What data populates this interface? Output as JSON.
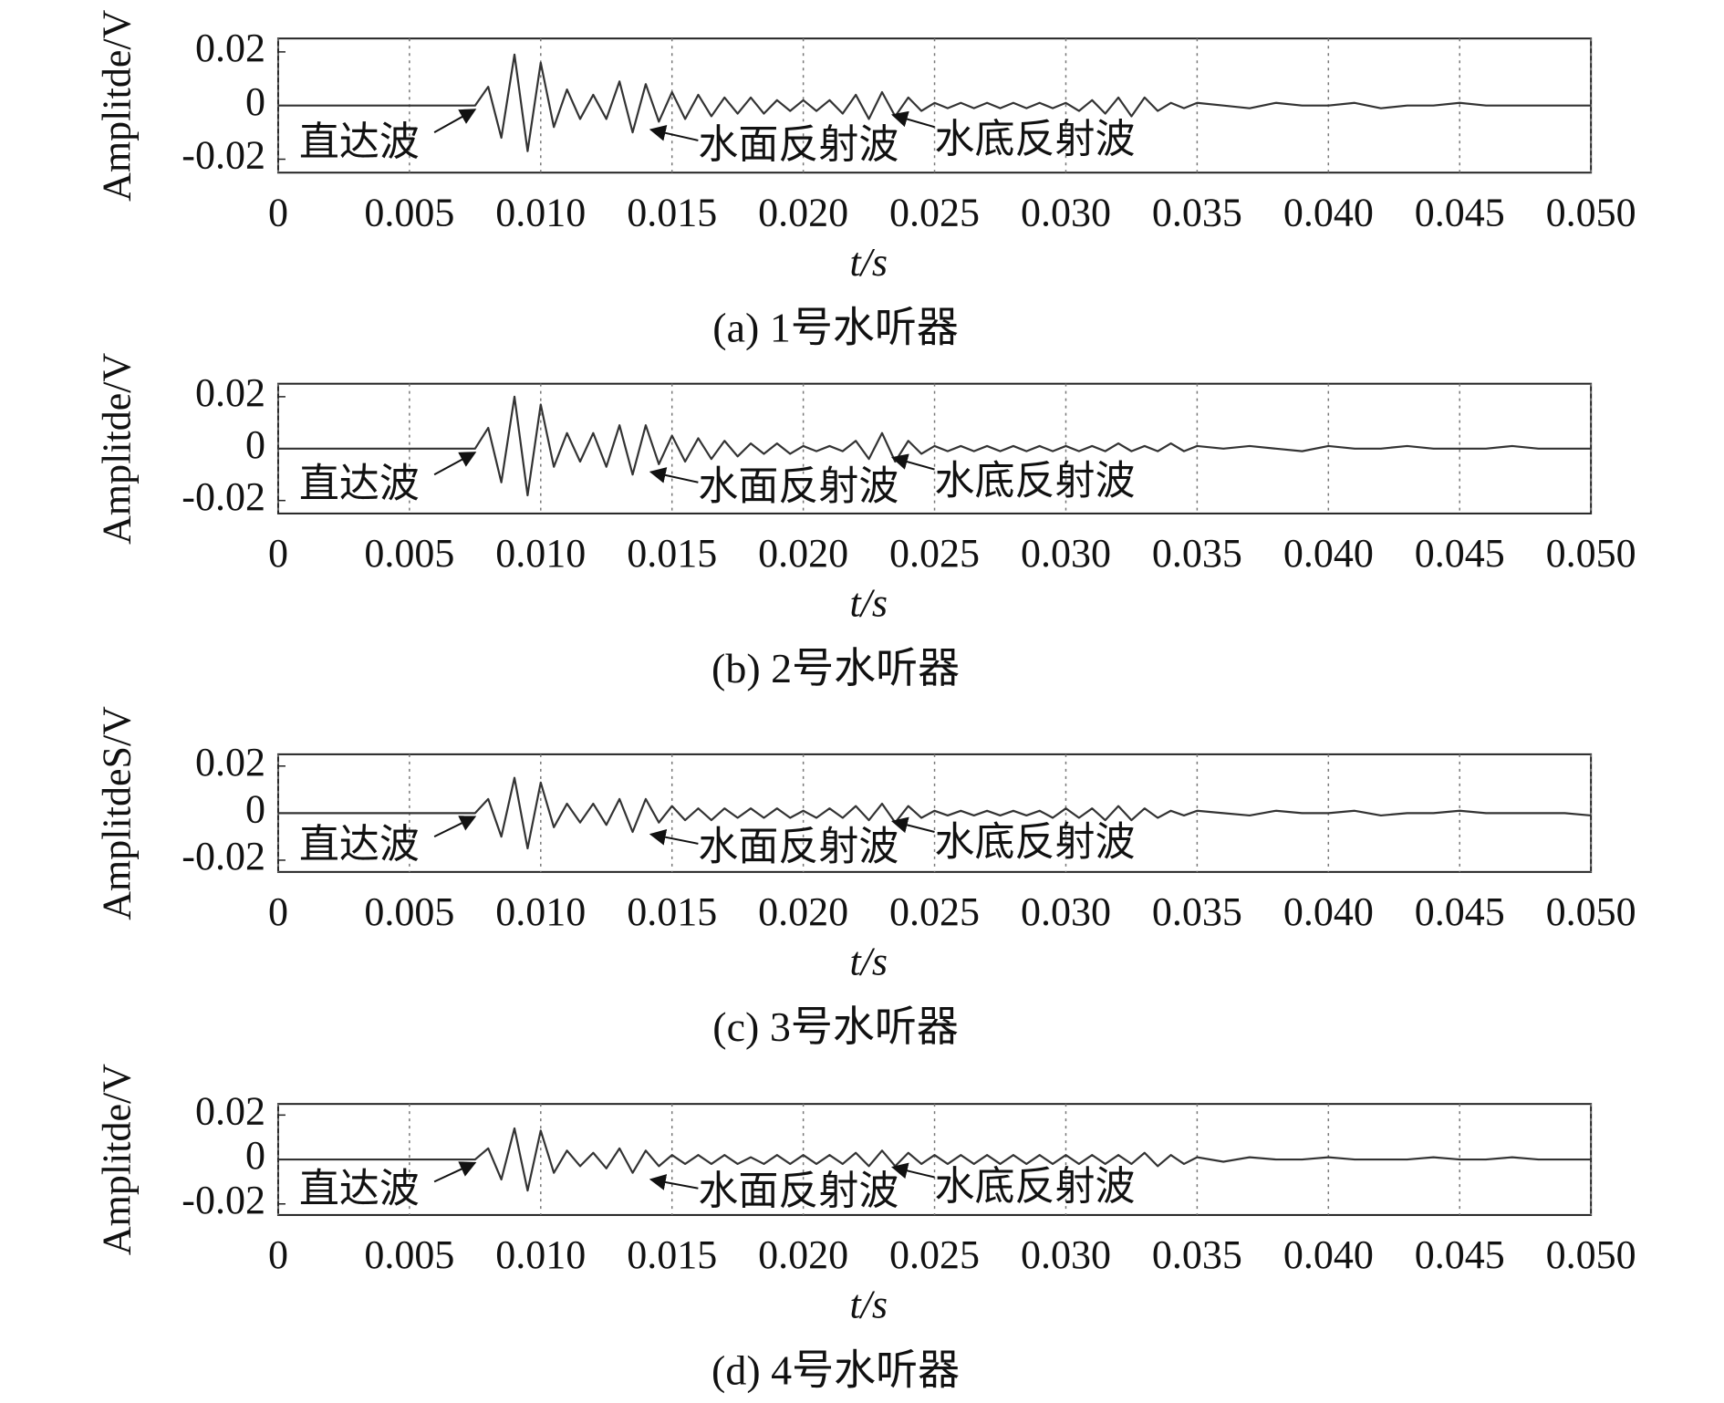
{
  "chart_data": [
    {
      "type": "line",
      "caption": "(a) 1号水听器",
      "xlabel": "t/s",
      "ylabel": "Amplitde/V",
      "color": "#333333",
      "xlim": [
        0,
        0.05
      ],
      "ylim": [
        -0.025,
        0.025
      ],
      "xticks": [
        0,
        0.005,
        {
          "value": 0.01,
          "label": "0.010"
        },
        0.015,
        {
          "value": 0.02,
          "label": "0.020"
        },
        0.025,
        {
          "value": 0.03,
          "label": "0.030"
        },
        0.035,
        {
          "value": 0.04,
          "label": "0.040"
        },
        0.045,
        {
          "value": 0.05,
          "label": "0.050"
        }
      ],
      "yticks": [
        -0.02,
        0,
        0.02
      ],
      "grid": "x",
      "annotations": [
        "直达波",
        "水面反射波",
        "水底反射波"
      ],
      "x": [
        0,
        0.001,
        0.002,
        0.003,
        0.004,
        0.005,
        0.006,
        0.007,
        0.0075,
        0.008,
        0.0085,
        0.009,
        0.0095,
        0.01,
        0.0105,
        0.011,
        0.0115,
        0.012,
        0.0125,
        0.013,
        0.0135,
        0.014,
        0.0145,
        0.015,
        0.0155,
        0.016,
        0.0165,
        0.017,
        0.0175,
        0.018,
        0.0185,
        0.019,
        0.0195,
        0.02,
        0.0205,
        0.021,
        0.0215,
        0.022,
        0.0225,
        0.023,
        0.0235,
        0.024,
        0.0245,
        0.025,
        0.0255,
        0.026,
        0.0265,
        0.027,
        0.0275,
        0.028,
        0.0285,
        0.029,
        0.0295,
        0.03,
        0.0305,
        0.031,
        0.0315,
        0.032,
        0.0325,
        0.033,
        0.0335,
        0.034,
        0.0345,
        0.035,
        0.036,
        0.037,
        0.038,
        0.039,
        0.04,
        0.041,
        0.042,
        0.043,
        0.044,
        0.045,
        0.046,
        0.047,
        0.048,
        0.049,
        0.05
      ],
      "values": [
        0,
        0,
        0,
        0,
        0,
        0,
        0,
        0,
        0,
        0.007,
        -0.012,
        0.019,
        -0.017,
        0.016,
        -0.008,
        0.006,
        -0.005,
        0.004,
        -0.005,
        0.009,
        -0.01,
        0.008,
        -0.006,
        0.005,
        -0.005,
        0.004,
        -0.004,
        0.003,
        -0.003,
        0.003,
        -0.003,
        0.002,
        -0.002,
        0.002,
        -0.002,
        0.002,
        -0.003,
        0.004,
        -0.005,
        0.005,
        -0.004,
        0.003,
        -0.002,
        0.001,
        -0.001,
        0.001,
        -0.001,
        0.001,
        -0.001,
        0.001,
        -0.001,
        0.001,
        -0.001,
        0.001,
        -0.002,
        0.002,
        -0.003,
        0.003,
        -0.004,
        0.003,
        -0.002,
        0.001,
        -0.001,
        0.001,
        0,
        -0.001,
        0.001,
        0,
        0,
        0.001,
        -0.001,
        0,
        0,
        0.001,
        0,
        0,
        0,
        0,
        0
      ]
    },
    {
      "type": "line",
      "caption": "(b) 2号水听器",
      "xlabel": "t/s",
      "ylabel": "Amplitde/V",
      "color": "#333333",
      "xlim": [
        0,
        0.05
      ],
      "ylim": [
        -0.025,
        0.025
      ],
      "xticks": [
        0,
        0.005,
        {
          "value": 0.01,
          "label": "0.010"
        },
        0.015,
        {
          "value": 0.02,
          "label": "0.020"
        },
        0.025,
        {
          "value": 0.03,
          "label": "0.030"
        },
        0.035,
        {
          "value": 0.04,
          "label": "0.040"
        },
        0.045,
        {
          "value": 0.05,
          "label": "0.050"
        }
      ],
      "yticks": [
        -0.02,
        0,
        0.02
      ],
      "grid": "x",
      "annotations": [
        "直达波",
        "水面反射波",
        "水底反射波"
      ],
      "x": [
        0,
        0.001,
        0.002,
        0.003,
        0.004,
        0.005,
        0.006,
        0.007,
        0.0075,
        0.008,
        0.0085,
        0.009,
        0.0095,
        0.01,
        0.0105,
        0.011,
        0.0115,
        0.012,
        0.0125,
        0.013,
        0.0135,
        0.014,
        0.0145,
        0.015,
        0.0155,
        0.016,
        0.0165,
        0.017,
        0.0175,
        0.018,
        0.0185,
        0.019,
        0.0195,
        0.02,
        0.0205,
        0.021,
        0.0215,
        0.022,
        0.0225,
        0.023,
        0.0235,
        0.024,
        0.0245,
        0.025,
        0.0255,
        0.026,
        0.0265,
        0.027,
        0.0275,
        0.028,
        0.0285,
        0.029,
        0.0295,
        0.03,
        0.0305,
        0.031,
        0.0315,
        0.032,
        0.0325,
        0.033,
        0.0335,
        0.034,
        0.0345,
        0.035,
        0.036,
        0.037,
        0.038,
        0.039,
        0.04,
        0.041,
        0.042,
        0.043,
        0.044,
        0.045,
        0.046,
        0.047,
        0.048,
        0.049,
        0.05
      ],
      "values": [
        0,
        0,
        0,
        0,
        0,
        0,
        0,
        0,
        0,
        0.008,
        -0.013,
        0.02,
        -0.018,
        0.017,
        -0.007,
        0.006,
        -0.005,
        0.006,
        -0.007,
        0.009,
        -0.01,
        0.009,
        -0.006,
        0.005,
        -0.005,
        0.004,
        -0.004,
        0.003,
        -0.003,
        0.002,
        -0.002,
        0.002,
        -0.002,
        0.001,
        -0.001,
        0.001,
        -0.001,
        0.003,
        -0.004,
        0.006,
        -0.005,
        0.003,
        -0.002,
        0.001,
        -0.001,
        0.001,
        -0.001,
        0.001,
        -0.001,
        0.001,
        -0.001,
        0.001,
        -0.001,
        0.001,
        -0.001,
        0.001,
        -0.001,
        0.002,
        -0.001,
        0.001,
        -0.001,
        0.002,
        -0.001,
        0.001,
        0,
        0.001,
        0,
        -0.001,
        0.001,
        0,
        0,
        0.001,
        0,
        0,
        0,
        0.001,
        0,
        0,
        0
      ]
    },
    {
      "type": "line",
      "caption": "(c) 3号水听器",
      "xlabel": "t/s",
      "ylabel": "AmplitdeS/V",
      "color": "#333333",
      "xlim": [
        0,
        0.05
      ],
      "ylim": [
        -0.025,
        0.025
      ],
      "xticks": [
        0,
        0.005,
        {
          "value": 0.01,
          "label": "0.010"
        },
        0.015,
        {
          "value": 0.02,
          "label": "0.020"
        },
        0.025,
        {
          "value": 0.03,
          "label": "0.030"
        },
        0.035,
        {
          "value": 0.04,
          "label": "0.040"
        },
        0.045,
        {
          "value": 0.05,
          "label": "0.050"
        }
      ],
      "yticks": [
        -0.02,
        0,
        0.02
      ],
      "grid": "x",
      "annotations": [
        "直达波",
        "水面反射波",
        "水底反射波"
      ],
      "x": [
        0,
        0.001,
        0.002,
        0.003,
        0.004,
        0.005,
        0.006,
        0.007,
        0.0075,
        0.008,
        0.0085,
        0.009,
        0.0095,
        0.01,
        0.0105,
        0.011,
        0.0115,
        0.012,
        0.0125,
        0.013,
        0.0135,
        0.014,
        0.0145,
        0.015,
        0.0155,
        0.016,
        0.0165,
        0.017,
        0.0175,
        0.018,
        0.0185,
        0.019,
        0.0195,
        0.02,
        0.0205,
        0.021,
        0.0215,
        0.022,
        0.0225,
        0.023,
        0.0235,
        0.024,
        0.0245,
        0.025,
        0.0255,
        0.026,
        0.0265,
        0.027,
        0.0275,
        0.028,
        0.0285,
        0.029,
        0.0295,
        0.03,
        0.0305,
        0.031,
        0.0315,
        0.032,
        0.0325,
        0.033,
        0.0335,
        0.034,
        0.0345,
        0.035,
        0.036,
        0.037,
        0.038,
        0.039,
        0.04,
        0.041,
        0.042,
        0.043,
        0.044,
        0.045,
        0.046,
        0.047,
        0.048,
        0.049,
        0.05
      ],
      "values": [
        0,
        0,
        0,
        0,
        0,
        0,
        0,
        0,
        0,
        0.006,
        -0.01,
        0.015,
        -0.015,
        0.013,
        -0.006,
        0.004,
        -0.004,
        0.004,
        -0.005,
        0.006,
        -0.008,
        0.006,
        -0.004,
        0.003,
        -0.003,
        0.002,
        -0.003,
        0.002,
        -0.002,
        0.002,
        -0.002,
        0.002,
        -0.002,
        0.001,
        -0.002,
        0.002,
        -0.002,
        0.003,
        -0.003,
        0.004,
        -0.004,
        0.003,
        -0.002,
        0.001,
        -0.001,
        0.001,
        -0.001,
        0.001,
        -0.001,
        0.001,
        -0.001,
        0.001,
        -0.002,
        0.002,
        -0.002,
        0.002,
        -0.003,
        0.003,
        -0.003,
        0.002,
        -0.002,
        0.001,
        -0.001,
        0.001,
        0,
        -0.001,
        0.001,
        0,
        0,
        0.001,
        -0.001,
        0,
        0,
        0.001,
        0,
        0,
        0,
        0,
        -0.001
      ]
    },
    {
      "type": "line",
      "caption": "(d) 4号水听器",
      "xlabel": "t/s",
      "ylabel": "Amplitde/V",
      "color": "#333333",
      "xlim": [
        0,
        0.05
      ],
      "ylim": [
        -0.025,
        0.025
      ],
      "xticks": [
        0,
        0.005,
        {
          "value": 0.01,
          "label": "0.010"
        },
        0.015,
        {
          "value": 0.02,
          "label": "0.020"
        },
        0.025,
        {
          "value": 0.03,
          "label": "0.030"
        },
        0.035,
        {
          "value": 0.04,
          "label": "0.040"
        },
        0.045,
        {
          "value": 0.05,
          "label": "0.050"
        }
      ],
      "yticks": [
        -0.02,
        0,
        0.02
      ],
      "grid": "x",
      "annotations": [
        "直达波",
        "水面反射波",
        "水底反射波"
      ],
      "x": [
        0,
        0.001,
        0.002,
        0.003,
        0.004,
        0.005,
        0.006,
        0.007,
        0.0075,
        0.008,
        0.0085,
        0.009,
        0.0095,
        0.01,
        0.0105,
        0.011,
        0.0115,
        0.012,
        0.0125,
        0.013,
        0.0135,
        0.014,
        0.0145,
        0.015,
        0.0155,
        0.016,
        0.0165,
        0.017,
        0.0175,
        0.018,
        0.0185,
        0.019,
        0.0195,
        0.02,
        0.0205,
        0.021,
        0.0215,
        0.022,
        0.0225,
        0.023,
        0.0235,
        0.024,
        0.0245,
        0.025,
        0.0255,
        0.026,
        0.0265,
        0.027,
        0.0275,
        0.028,
        0.0285,
        0.029,
        0.0295,
        0.03,
        0.0305,
        0.031,
        0.0315,
        0.032,
        0.0325,
        0.033,
        0.0335,
        0.034,
        0.0345,
        0.035,
        0.036,
        0.037,
        0.038,
        0.039,
        0.04,
        0.041,
        0.042,
        0.043,
        0.044,
        0.045,
        0.046,
        0.047,
        0.048,
        0.049,
        0.05
      ],
      "values": [
        0,
        0,
        0,
        0,
        0,
        0,
        0,
        0,
        0,
        0.005,
        -0.009,
        0.014,
        -0.014,
        0.013,
        -0.006,
        0.004,
        -0.003,
        0.003,
        -0.004,
        0.005,
        -0.006,
        0.004,
        -0.003,
        0.002,
        -0.002,
        0.002,
        -0.002,
        0.002,
        -0.002,
        0.001,
        -0.002,
        0.002,
        -0.002,
        0.002,
        -0.002,
        0.002,
        -0.002,
        0.003,
        -0.003,
        0.004,
        -0.003,
        0.003,
        -0.002,
        0.002,
        -0.002,
        0.002,
        -0.002,
        0.002,
        -0.002,
        0.002,
        -0.002,
        0.002,
        -0.002,
        0.002,
        -0.002,
        0.002,
        -0.002,
        0.002,
        -0.002,
        0.003,
        -0.003,
        0.002,
        -0.002,
        0.001,
        -0.001,
        0.001,
        0,
        0,
        0.001,
        0,
        0,
        0,
        0.001,
        0,
        0,
        0.001,
        0,
        0,
        0
      ]
    }
  ]
}
